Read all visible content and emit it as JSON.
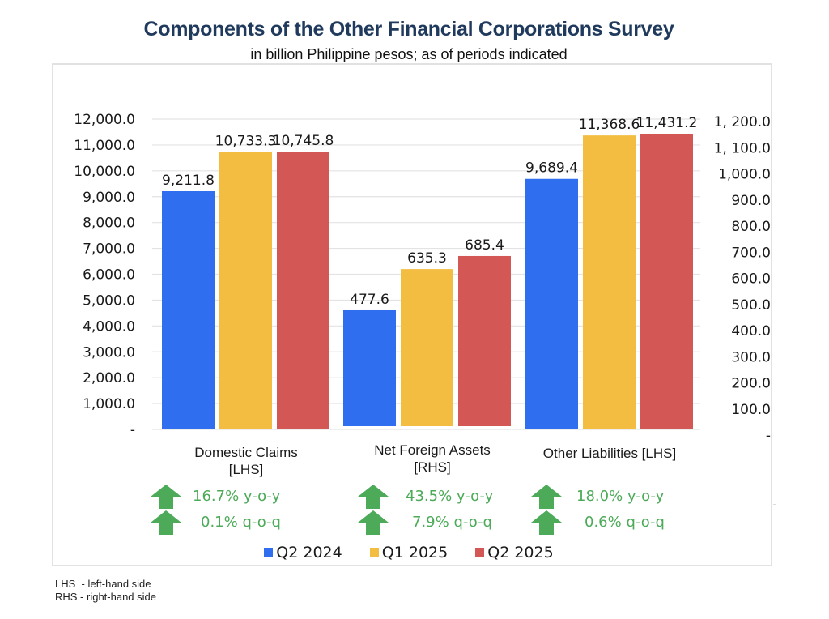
{
  "chart_data": {
    "type": "bar",
    "title": "Components of the Other Financial Corporations Survey",
    "subtitle": "in billion Philippine pesos; as of periods indicated",
    "categories": [
      "Domestic Claims [LHS]",
      "Net Foreign Assets [RHS]",
      "Other Liabilities [LHS]"
    ],
    "category_lines": [
      [
        "Domestic Claims",
        "[LHS]"
      ],
      [
        "Net Foreign Assets",
        "[RHS]"
      ],
      [
        "Other Liabilities [LHS]"
      ]
    ],
    "category_axis": [
      "left",
      "right",
      "left"
    ],
    "series": [
      {
        "name": "Q2 2024",
        "color": "#2f6fef",
        "values": [
          9211.8,
          477.6,
          9689.4
        ],
        "labels": [
          "9,211.8",
          "477.6",
          "9,689.4"
        ]
      },
      {
        "name": "Q1 2025",
        "color": "#f2bd40",
        "values": [
          10733.3,
          635.3,
          11368.6
        ],
        "labels": [
          "10,733.3",
          "635.3",
          "11,368.6"
        ]
      },
      {
        "name": "Q2 2025",
        "color": "#d35755",
        "values": [
          10745.8,
          685.4,
          11431.2
        ],
        "labels": [
          "10,745.8",
          "685.4",
          "11,431.2"
        ]
      }
    ],
    "left_axis": {
      "ylim": [
        0,
        12000
      ],
      "ticks": [
        "-",
        "1,000.0",
        "2,000.0",
        "3,000.0",
        "4,000.0",
        "5,000.0",
        "6,000.0",
        "7,000.0",
        "8,000.0",
        "9,000.0",
        "10,000.0",
        "11,000.0",
        "12,000.0"
      ]
    },
    "right_axis": {
      "ylim": [
        0,
        1200
      ],
      "ticks": [
        "-",
        "100.0",
        "200.0",
        "300.0",
        "400.0",
        "500.0",
        "600.0",
        "700.0",
        "800.0",
        "900.0",
        "1,000.0",
        "1, 100.0",
        "1, 200.0"
      ]
    },
    "grid": true,
    "legend_position": "bottom",
    "xlabel": "",
    "ylabel": ""
  },
  "growth": [
    {
      "yoy": "16.7% y-o-y",
      "qoq": "0.1% q-o-q",
      "yoy_dir": "up",
      "qoq_dir": "up"
    },
    {
      "yoy": "43.5% y-o-y",
      "qoq": "7.9% q-o-q",
      "yoy_dir": "up",
      "qoq_dir": "up"
    },
    {
      "yoy": "18.0% y-o-y",
      "qoq": "0.6% q-o-q",
      "yoy_dir": "up",
      "qoq_dir": "up"
    }
  ],
  "colors": {
    "growth_up": "#4caa58",
    "title": "#1f3a5c"
  },
  "notes": [
    "LHS  - left-hand side",
    "RHS - right-hand side"
  ]
}
